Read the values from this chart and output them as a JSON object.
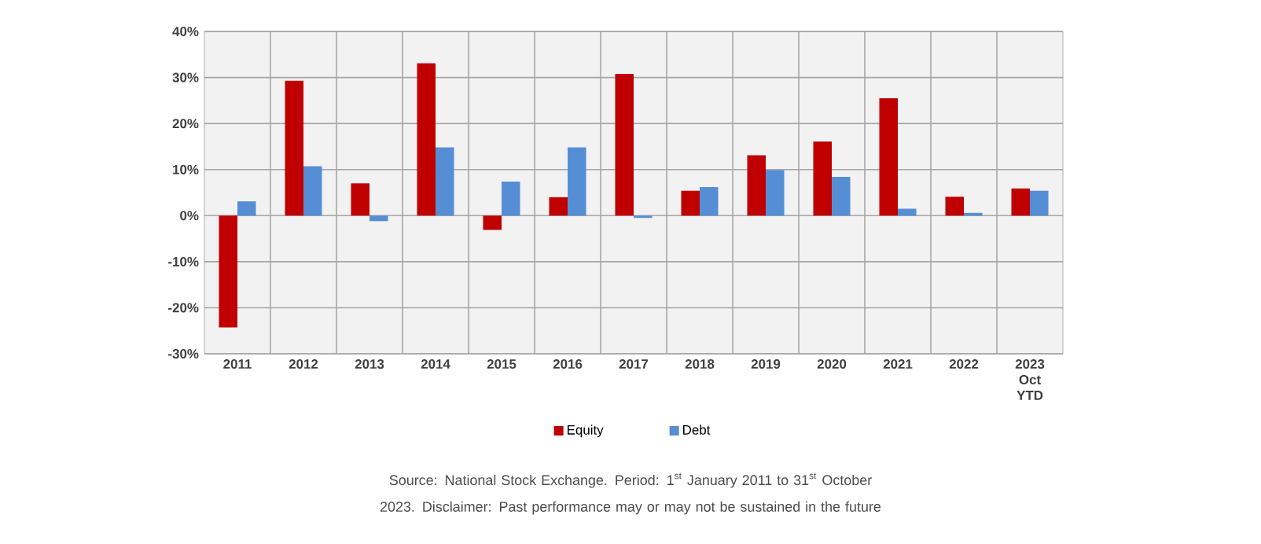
{
  "chart_data": {
    "type": "bar",
    "categories": [
      "2011",
      "2012",
      "2013",
      "2014",
      "2015",
      "2016",
      "2017",
      "2018",
      "2019",
      "2020",
      "2021",
      "2022",
      "2023 Oct YTD"
    ],
    "series": [
      {
        "name": "Equity",
        "color": "#c00000",
        "values": [
          -24.3,
          29.3,
          7.0,
          33.1,
          -3.1,
          4.0,
          30.8,
          5.4,
          13.1,
          16.1,
          25.5,
          4.1,
          5.9
        ]
      },
      {
        "name": "Debt",
        "color": "#558ed5",
        "values": [
          3.1,
          10.7,
          -1.2,
          14.8,
          7.4,
          14.8,
          -0.5,
          6.2,
          9.9,
          8.4,
          1.5,
          0.6,
          5.4
        ]
      }
    ],
    "ylim": [
      -30,
      40
    ],
    "yticks": [
      {
        "value": -30,
        "label": "-30%"
      },
      {
        "value": -20,
        "label": "-20%"
      },
      {
        "value": -10,
        "label": "-10%"
      },
      {
        "value": 0,
        "label": "0%"
      },
      {
        "value": 10,
        "label": "10%"
      },
      {
        "value": 20,
        "label": "20%"
      },
      {
        "value": 30,
        "label": "30%"
      },
      {
        "value": 40,
        "label": "40%"
      }
    ],
    "grid": true,
    "legend": "bottom",
    "annotations": [
      "Source: National Stock Exchange. Period: 1$^{st}$ January 2011 to 31$^{st}$ October 2023. Disclaimer: Past performance may or may not be sustained in the future"
    ]
  }
}
